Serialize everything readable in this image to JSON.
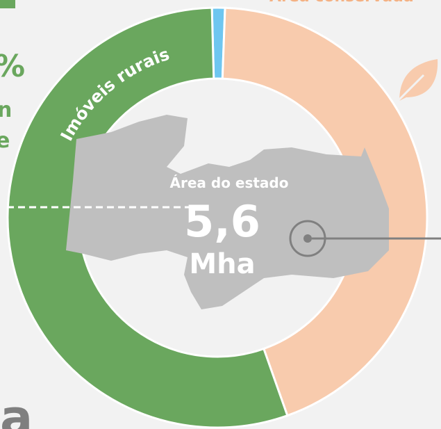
{
  "chart_data": {
    "type": "donut",
    "categories": [
      null,
      "Área conservada",
      "Imóveis rurais"
    ],
    "series": [
      {
        "values": [
          1,
          44,
          55
        ],
        "colors": [
          "#6ec6f0",
          "#f8cbad",
          "#6aa75e"
        ]
      }
    ],
    "center_label": "Área do estado",
    "center_value": "5,6",
    "center_unit": "Mha",
    "side_fragments": [
      "%",
      "n",
      "e",
      "a"
    ]
  }
}
